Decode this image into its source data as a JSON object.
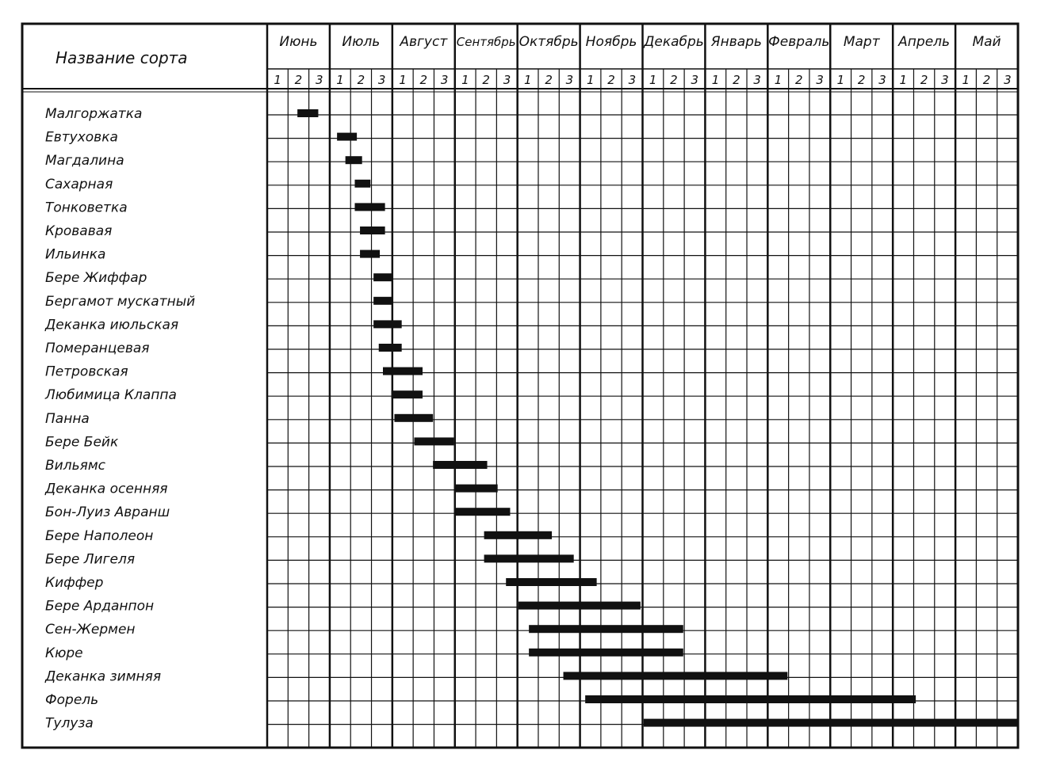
{
  "chart_data": {
    "type": "gantt",
    "header_label": "Название сорта",
    "months": [
      "Июнь",
      "Июль",
      "Август",
      "Сентябрь",
      "Октябрь",
      "Ноябрь",
      "Декабрь",
      "Январь",
      "Февраль",
      "Март",
      "Апрель",
      "Май"
    ],
    "decades": [
      "1",
      "2",
      "3"
    ],
    "grid": true,
    "units": "decades (10-day periods) counted from Июнь decade 1 = 0",
    "varieties": [
      {
        "name": "Малгоржатка",
        "start": 1.45,
        "end": 2.45
      },
      {
        "name": "Евтуховка",
        "start": 3.35,
        "end": 4.3
      },
      {
        "name": "Магдалина",
        "start": 3.75,
        "end": 4.55
      },
      {
        "name": "Сахарная",
        "start": 4.2,
        "end": 4.95
      },
      {
        "name": "Тонковетка",
        "start": 4.2,
        "end": 5.65
      },
      {
        "name": "Кровавая",
        "start": 4.45,
        "end": 5.65
      },
      {
        "name": "Ильинка",
        "start": 4.45,
        "end": 5.4
      },
      {
        "name": "Бере Жиффар",
        "start": 5.1,
        "end": 6.0
      },
      {
        "name": "Бергамот мускатный",
        "start": 5.1,
        "end": 6.0
      },
      {
        "name": "Деканка июльская",
        "start": 5.1,
        "end": 6.45
      },
      {
        "name": "Померанцевая",
        "start": 5.35,
        "end": 6.45
      },
      {
        "name": "Петровская",
        "start": 5.55,
        "end": 7.45
      },
      {
        "name": "Любимица Клаппа",
        "start": 5.95,
        "end": 7.45
      },
      {
        "name": "Панна",
        "start": 6.1,
        "end": 7.95
      },
      {
        "name": "Бере Бейк",
        "start": 7.05,
        "end": 8.95
      },
      {
        "name": "Вильямс",
        "start": 7.95,
        "end": 10.55
      },
      {
        "name": "Деканка осенняя",
        "start": 9.0,
        "end": 11.05
      },
      {
        "name": "Бон-Луиз Авранш",
        "start": 9.0,
        "end": 11.65
      },
      {
        "name": "Бере Наполеон",
        "start": 10.4,
        "end": 13.65
      },
      {
        "name": "Бере Лигеля",
        "start": 10.4,
        "end": 14.7
      },
      {
        "name": "Киффер",
        "start": 11.45,
        "end": 15.8
      },
      {
        "name": "Бере Арданпон",
        "start": 12.05,
        "end": 17.9
      },
      {
        "name": "Сен-Жермен",
        "start": 12.55,
        "end": 19.95
      },
      {
        "name": "Кюре",
        "start": 12.55,
        "end": 19.95
      },
      {
        "name": "Деканка зимняя",
        "start": 14.2,
        "end": 24.95
      },
      {
        "name": "Форель",
        "start": 15.25,
        "end": 31.1
      },
      {
        "name": "Тулуза",
        "start": 18.05,
        "end": 36.0
      }
    ]
  }
}
